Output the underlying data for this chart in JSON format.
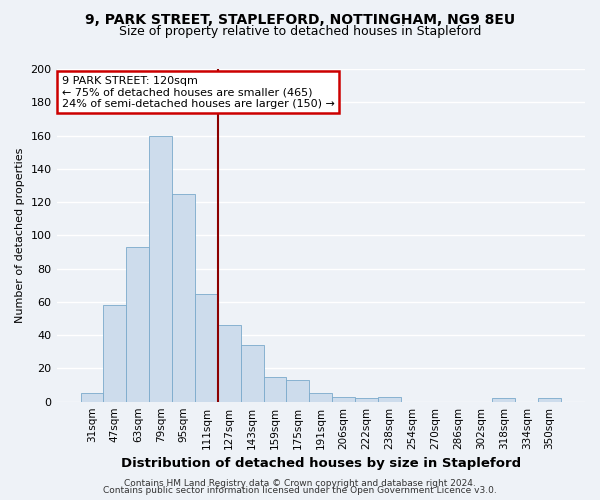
{
  "title": "9, PARK STREET, STAPLEFORD, NOTTINGHAM, NG9 8EU",
  "subtitle": "Size of property relative to detached houses in Stapleford",
  "xlabel": "Distribution of detached houses by size in Stapleford",
  "ylabel": "Number of detached properties",
  "bar_labels": [
    "31sqm",
    "47sqm",
    "63sqm",
    "79sqm",
    "95sqm",
    "111sqm",
    "127sqm",
    "143sqm",
    "159sqm",
    "175sqm",
    "191sqm",
    "206sqm",
    "222sqm",
    "238sqm",
    "254sqm",
    "270sqm",
    "286sqm",
    "302sqm",
    "318sqm",
    "334sqm",
    "350sqm"
  ],
  "bar_values": [
    5,
    58,
    93,
    160,
    125,
    65,
    46,
    34,
    15,
    13,
    5,
    3,
    2,
    3,
    0,
    0,
    0,
    0,
    2,
    0,
    2
  ],
  "bar_color": "#cddcec",
  "bar_edgecolor": "#7aaacb",
  "ylim": [
    0,
    200
  ],
  "yticks": [
    0,
    20,
    40,
    60,
    80,
    100,
    120,
    140,
    160,
    180,
    200
  ],
  "vline_x": 5.5,
  "vline_color": "#8b0000",
  "annotation_title": "9 PARK STREET: 120sqm",
  "annotation_line1": "← 75% of detached houses are smaller (465)",
  "annotation_line2": "24% of semi-detached houses are larger (150) →",
  "annotation_box_edgecolor": "#cc0000",
  "footer_line1": "Contains HM Land Registry data © Crown copyright and database right 2024.",
  "footer_line2": "Contains public sector information licensed under the Open Government Licence v3.0.",
  "background_color": "#eef2f7",
  "grid_color": "#ffffff"
}
